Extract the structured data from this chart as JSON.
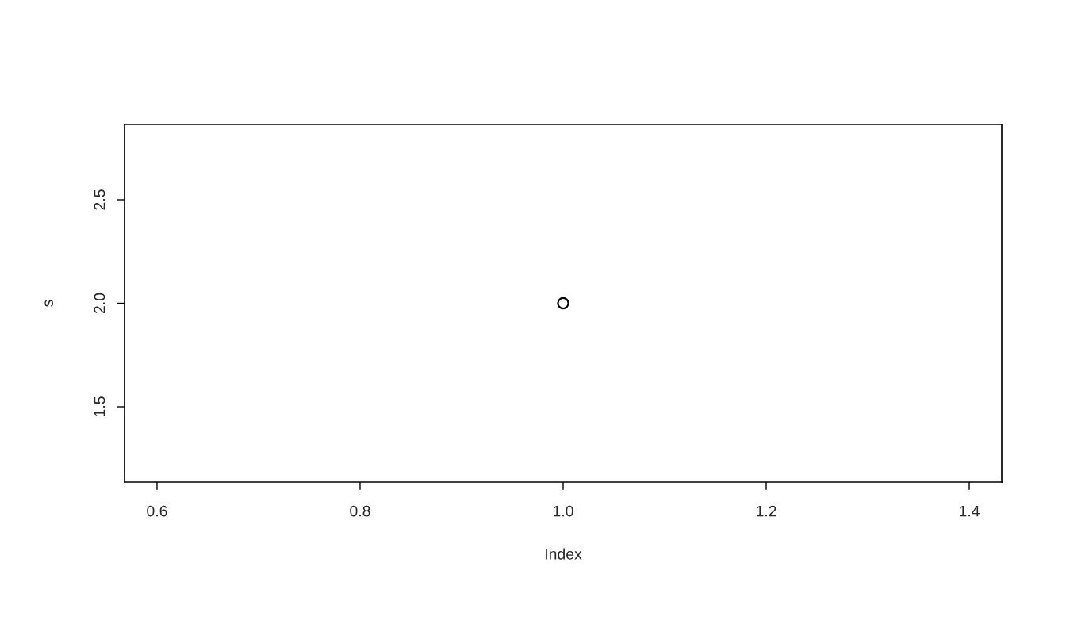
{
  "chart_data": {
    "type": "scatter",
    "xlabel": "Index",
    "ylabel": "s",
    "x": [
      1
    ],
    "series": [
      {
        "color": "#000000",
        "values": [
          2
        ]
      }
    ],
    "marker": "circle",
    "xlim": [
      0.568,
      1.432
    ],
    "ylim": [
      1.136,
      2.864
    ],
    "xticks": [
      0.6,
      0.8,
      {
        "value": 1,
        "label": "1.0"
      },
      1.2,
      1.4
    ],
    "yticks": [
      1.5,
      {
        "value": 2,
        "label": "2.0"
      },
      2.5
    ],
    "grid": false
  }
}
